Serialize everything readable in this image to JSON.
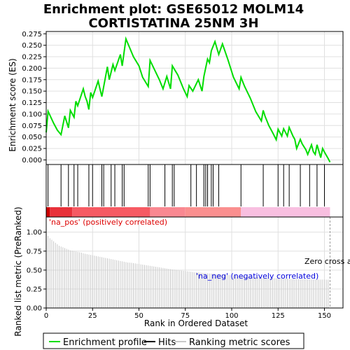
{
  "chart_data": {
    "type": "line",
    "title_line1": "Enrichment plot: GSE65012 MOLM14",
    "title_line2": "CORTISTATINA 25NM 3H",
    "xlabel": "Rank in Ordered Dataset",
    "ylabel_top": "Enrichment score (ES)",
    "ylabel_bottom": "Ranked list metric (PreRanked)",
    "xlim": [
      0,
      160
    ],
    "es_ylim": [
      -0.01,
      0.28
    ],
    "metric_ylim": [
      0,
      1.2
    ],
    "x_ticks": [
      0,
      25,
      50,
      75,
      100,
      125,
      150
    ],
    "x_tick_labels": [
      "0",
      "25",
      "50",
      "75",
      "100",
      "125",
      "150"
    ],
    "es_ticks": [
      0.0,
      0.025,
      0.05,
      0.075,
      0.1,
      0.125,
      0.15,
      0.175,
      0.2,
      0.225,
      0.25,
      0.275
    ],
    "es_tick_labels": [
      "0.000",
      "0.025",
      "0.050",
      "0.075",
      "0.100",
      "0.125",
      "0.150",
      "0.175",
      "0.200",
      "0.225",
      "0.250",
      "0.275"
    ],
    "metric_ticks": [
      0.0,
      0.25,
      0.5,
      0.75,
      1.0
    ],
    "metric_tick_labels": [
      "0.00",
      "0.25",
      "0.50",
      "0.75",
      "1.00"
    ],
    "enrichment_profile": {
      "x": [
        0,
        1,
        4,
        6,
        8,
        10,
        12,
        13,
        15,
        16,
        17,
        20,
        21,
        22,
        23,
        24,
        25,
        28,
        29,
        30,
        33,
        34,
        36,
        37,
        40,
        41,
        43,
        47,
        50,
        52,
        55,
        56,
        61,
        63,
        65,
        67,
        68,
        71,
        74,
        76,
        77,
        79,
        82,
        84,
        85,
        87,
        88,
        89,
        91,
        93,
        95,
        98,
        101,
        104,
        105,
        106,
        107,
        110,
        113,
        116,
        117,
        118,
        120,
        122,
        124,
        125,
        127,
        128,
        130,
        131,
        133,
        134,
        135,
        137,
        138,
        140,
        141,
        143,
        144,
        145,
        146,
        148,
        149,
        150,
        152,
        153
      ],
      "y": [
        0.06,
        0.106,
        0.08,
        0.065,
        0.055,
        0.096,
        0.07,
        0.108,
        0.093,
        0.128,
        0.118,
        0.155,
        0.138,
        0.128,
        0.11,
        0.147,
        0.136,
        0.172,
        0.155,
        0.138,
        0.203,
        0.175,
        0.208,
        0.195,
        0.23,
        0.205,
        0.264,
        0.225,
        0.205,
        0.18,
        0.16,
        0.217,
        0.175,
        0.155,
        0.182,
        0.155,
        0.205,
        0.185,
        0.155,
        0.138,
        0.162,
        0.15,
        0.175,
        0.15,
        0.182,
        0.22,
        0.212,
        0.238,
        0.258,
        0.23,
        0.253,
        0.218,
        0.18,
        0.155,
        0.18,
        0.17,
        0.16,
        0.135,
        0.105,
        0.085,
        0.108,
        0.095,
        0.075,
        0.06,
        0.044,
        0.067,
        0.052,
        0.068,
        0.052,
        0.071,
        0.052,
        0.045,
        0.025,
        0.045,
        0.035,
        0.022,
        0.012,
        0.033,
        0.018,
        0.012,
        0.033,
        0.005,
        0.025,
        0.017,
        0.003,
        -0.005
      ]
    },
    "hits": [
      1,
      8,
      12,
      15,
      17,
      23,
      25,
      30,
      31,
      35,
      37,
      41,
      42,
      55,
      56,
      64,
      68,
      69,
      78,
      81,
      85,
      86,
      87,
      89,
      90,
      93,
      105,
      117,
      125,
      128,
      131,
      137,
      142,
      146,
      150
    ],
    "ranking_metric": [
      1.0,
      0.95,
      0.92,
      0.9,
      0.88,
      0.86,
      0.84,
      0.82,
      0.81,
      0.8,
      0.79,
      0.78,
      0.77,
      0.76,
      0.755,
      0.75,
      0.745,
      0.74,
      0.735,
      0.73,
      0.72,
      0.715,
      0.71,
      0.705,
      0.7,
      0.695,
      0.69,
      0.685,
      0.68,
      0.675,
      0.67,
      0.665,
      0.66,
      0.655,
      0.65,
      0.645,
      0.64,
      0.635,
      0.63,
      0.625,
      0.62,
      0.615,
      0.61,
      0.605,
      0.6,
      0.598,
      0.596,
      0.592,
      0.588,
      0.584,
      0.58,
      0.576,
      0.572,
      0.568,
      0.564,
      0.56,
      0.556,
      0.552,
      0.548,
      0.544,
      0.54,
      0.536,
      0.532,
      0.528,
      0.524,
      0.52,
      0.516,
      0.512,
      0.508,
      0.505,
      0.502,
      0.499,
      0.496,
      0.493,
      0.49,
      0.487,
      0.484,
      0.481,
      0.478,
      0.475,
      0.472,
      0.47,
      0.468,
      0.466,
      0.464,
      0.462,
      0.46,
      0.458,
      0.456,
      0.454,
      0.452,
      0.45,
      0.448,
      0.446,
      0.444,
      0.442,
      0.44,
      0.438,
      0.436,
      0.434,
      0.432,
      0.43,
      0.428,
      0.426,
      0.424,
      0.422,
      0.42,
      0.418,
      0.416,
      0.414,
      0.412,
      0.41,
      0.408,
      0.406,
      0.404,
      0.402,
      0.4,
      0.399,
      0.398,
      0.397,
      0.396,
      0.395,
      0.394,
      0.393,
      0.392,
      0.391,
      0.39,
      0.389,
      0.388,
      0.387,
      0.386,
      0.385,
      0.384,
      0.383,
      0.382,
      0.381,
      0.38,
      0.38,
      0.379,
      0.379,
      0.378,
      0.378,
      0.377,
      0.377,
      0.376,
      0.376,
      0.376,
      0.375,
      0.375,
      0.375,
      0.375,
      0.374,
      0.374
    ],
    "heat_segments": [
      {
        "from": 0,
        "to": 2,
        "color": "#cc0000"
      },
      {
        "from": 2,
        "to": 14,
        "color": "#e8313a"
      },
      {
        "from": 14,
        "to": 56,
        "color": "#f65a63"
      },
      {
        "from": 56,
        "to": 75,
        "color": "#f98891"
      },
      {
        "from": 75,
        "to": 105,
        "color": "#fa8f8f"
      },
      {
        "from": 105,
        "to": 153,
        "color": "#f8bfe0"
      }
    ],
    "annotations": {
      "na_pos": "'na_pos' (positively correlated)",
      "na_neg": "'na_neg' (negatively correlated)",
      "zero_cross": "Zero cross at 153",
      "zero_cross_x": 153
    },
    "colors": {
      "profile": "#00dd00",
      "hits": "#000000",
      "metric": "#c8c8c8",
      "na_pos": "#dd0000",
      "na_neg": "#0000dd",
      "zero_line": "#999999"
    },
    "legend": [
      {
        "label": "Enrichment profile",
        "color": "#00dd00"
      },
      {
        "label": "Hits",
        "color": "#000000"
      },
      {
        "label": "Ranking metric scores",
        "color": "#c8c8c8"
      }
    ]
  }
}
